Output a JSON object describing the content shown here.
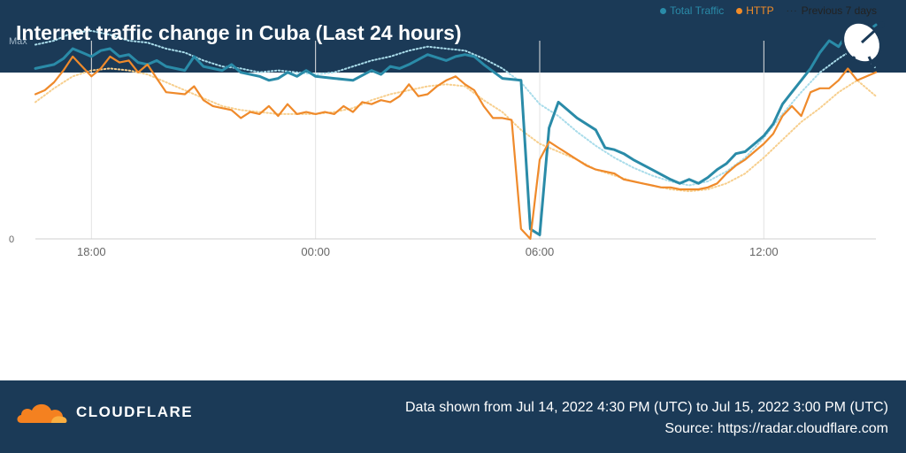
{
  "header": {
    "title": "Internet traffic change in Cuba (Last 24 hours)"
  },
  "legend": [
    {
      "label": "Total Traffic",
      "color": "#2a8ba8",
      "marker": "dot"
    },
    {
      "label": "HTTP",
      "color": "#f28c28",
      "marker": "dot"
    },
    {
      "label": "Previous 7 days",
      "color": "#222222",
      "marker": "dots"
    }
  ],
  "colors": {
    "total": "#2a8ba8",
    "total_prev": "#a9dcea",
    "http": "#ef8a2b",
    "http_prev": "#f7cf8e",
    "band": "#1b3a57"
  },
  "footer": {
    "brand": "CLOUDFLARE",
    "logo_icon": "cloudflare-cloud-icon",
    "range_text": "Data shown from Jul 14, 2022 4:30 PM (UTC) to Jul 15, 2022 3:00 PM (UTC)",
    "source_text": "Source: https://radar.cloudflare.com"
  },
  "chart_data": {
    "type": "line",
    "title": "Internet traffic change in Cuba (Last 24 hours)",
    "x_unit": "hours since Jul 14, 2022 4:30 PM UTC",
    "xlim": [
      0,
      22.5
    ],
    "ylim": [
      0,
      100
    ],
    "y_ticks": [
      {
        "value": 0,
        "label": "0"
      },
      {
        "value": 100,
        "label": "Max"
      }
    ],
    "x_ticks": [
      {
        "value": 1.5,
        "label": "18:00"
      },
      {
        "value": 7.5,
        "label": "00:00"
      },
      {
        "value": 13.5,
        "label": "06:00"
      },
      {
        "value": 19.5,
        "label": "12:00"
      }
    ],
    "grid": "vertical",
    "legend_position": "top-right",
    "series": [
      {
        "name": "Total Traffic",
        "key": "total",
        "style": "solid",
        "points": [
          [
            0,
            86
          ],
          [
            0.5,
            88
          ],
          [
            0.75,
            91
          ],
          [
            1,
            96
          ],
          [
            1.25,
            94
          ],
          [
            1.5,
            92
          ],
          [
            1.75,
            95
          ],
          [
            2,
            96
          ],
          [
            2.25,
            92
          ],
          [
            2.5,
            93
          ],
          [
            2.75,
            89
          ],
          [
            3,
            88
          ],
          [
            3.25,
            90
          ],
          [
            3.5,
            87
          ],
          [
            4,
            85
          ],
          [
            4.25,
            92
          ],
          [
            4.5,
            87
          ],
          [
            4.75,
            86
          ],
          [
            5,
            85
          ],
          [
            5.25,
            88
          ],
          [
            5.5,
            84
          ],
          [
            6,
            82
          ],
          [
            6.25,
            80
          ],
          [
            6.5,
            81
          ],
          [
            6.75,
            84
          ],
          [
            7,
            82
          ],
          [
            7.25,
            85
          ],
          [
            7.5,
            82
          ],
          [
            8,
            81
          ],
          [
            8.5,
            80
          ],
          [
            9,
            85
          ],
          [
            9.25,
            83
          ],
          [
            9.5,
            87
          ],
          [
            9.75,
            86
          ],
          [
            10,
            88
          ],
          [
            10.5,
            93
          ],
          [
            11,
            90
          ],
          [
            11.25,
            92
          ],
          [
            11.5,
            93
          ],
          [
            11.75,
            92
          ],
          [
            12,
            88
          ],
          [
            12.5,
            81
          ],
          [
            13,
            80
          ],
          [
            13.25,
            5
          ],
          [
            13.5,
            2
          ],
          [
            13.75,
            56
          ],
          [
            14,
            69
          ],
          [
            14.25,
            65
          ],
          [
            14.5,
            61
          ],
          [
            15,
            55
          ],
          [
            15.25,
            46
          ],
          [
            15.5,
            45
          ],
          [
            15.75,
            43
          ],
          [
            16,
            40
          ],
          [
            16.5,
            35
          ],
          [
            17,
            30
          ],
          [
            17.25,
            28
          ],
          [
            17.5,
            30
          ],
          [
            17.75,
            28
          ],
          [
            18,
            31
          ],
          [
            18.25,
            35
          ],
          [
            18.5,
            38
          ],
          [
            18.75,
            43
          ],
          [
            19,
            44
          ],
          [
            19.25,
            48
          ],
          [
            19.5,
            52
          ],
          [
            19.75,
            58
          ],
          [
            20,
            68
          ],
          [
            20.25,
            74
          ],
          [
            20.5,
            80
          ],
          [
            20.75,
            86
          ],
          [
            21,
            94
          ],
          [
            21.25,
            100
          ],
          [
            21.5,
            97
          ],
          [
            21.75,
            104
          ],
          [
            22,
            101
          ],
          [
            22.5,
            108
          ]
        ]
      },
      {
        "name": "Total Traffic (Previous 7 days)",
        "key": "total_prev",
        "style": "dotted",
        "points": [
          [
            0,
            98
          ],
          [
            0.5,
            100
          ],
          [
            1,
            104
          ],
          [
            1.5,
            105
          ],
          [
            2,
            103
          ],
          [
            2.5,
            100
          ],
          [
            3,
            99
          ],
          [
            3.5,
            96
          ],
          [
            4,
            94
          ],
          [
            4.5,
            90
          ],
          [
            5,
            87
          ],
          [
            5.5,
            86
          ],
          [
            6,
            84
          ],
          [
            6.5,
            85
          ],
          [
            7,
            84
          ],
          [
            7.5,
            83
          ],
          [
            8,
            84
          ],
          [
            8.5,
            87
          ],
          [
            9,
            90
          ],
          [
            9.5,
            92
          ],
          [
            10,
            95
          ],
          [
            10.5,
            97
          ],
          [
            11,
            96
          ],
          [
            11.5,
            95
          ],
          [
            12,
            91
          ],
          [
            12.5,
            86
          ],
          [
            13,
            79
          ],
          [
            13.5,
            68
          ],
          [
            14,
            62
          ],
          [
            14.5,
            54
          ],
          [
            15,
            47
          ],
          [
            15.5,
            41
          ],
          [
            16,
            36
          ],
          [
            16.5,
            32
          ],
          [
            17,
            29
          ],
          [
            17.5,
            27
          ],
          [
            18,
            29
          ],
          [
            18.5,
            34
          ],
          [
            19,
            41
          ],
          [
            19.5,
            51
          ],
          [
            20,
            63
          ],
          [
            20.5,
            74
          ],
          [
            21,
            84
          ],
          [
            21.5,
            91
          ],
          [
            22,
            97
          ],
          [
            22.5,
            86
          ]
        ]
      },
      {
        "name": "HTTP",
        "key": "http",
        "style": "solid",
        "points": [
          [
            0,
            73
          ],
          [
            0.25,
            75
          ],
          [
            0.5,
            79
          ],
          [
            0.75,
            85
          ],
          [
            1,
            92
          ],
          [
            1.25,
            87
          ],
          [
            1.5,
            82
          ],
          [
            1.75,
            86
          ],
          [
            2,
            92
          ],
          [
            2.25,
            89
          ],
          [
            2.5,
            90
          ],
          [
            2.75,
            84
          ],
          [
            3,
            88
          ],
          [
            3.25,
            81
          ],
          [
            3.5,
            74
          ],
          [
            4,
            73
          ],
          [
            4.25,
            77
          ],
          [
            4.5,
            70
          ],
          [
            4.75,
            67
          ],
          [
            5,
            66
          ],
          [
            5.25,
            65
          ],
          [
            5.5,
            61
          ],
          [
            5.75,
            64
          ],
          [
            6,
            63
          ],
          [
            6.25,
            67
          ],
          [
            6.5,
            62
          ],
          [
            6.75,
            68
          ],
          [
            7,
            63
          ],
          [
            7.25,
            64
          ],
          [
            7.5,
            63
          ],
          [
            7.75,
            64
          ],
          [
            8,
            63
          ],
          [
            8.25,
            67
          ],
          [
            8.5,
            64
          ],
          [
            8.75,
            69
          ],
          [
            9,
            68
          ],
          [
            9.25,
            70
          ],
          [
            9.5,
            69
          ],
          [
            9.75,
            72
          ],
          [
            10,
            78
          ],
          [
            10.25,
            72
          ],
          [
            10.5,
            73
          ],
          [
            10.75,
            77
          ],
          [
            11,
            80
          ],
          [
            11.25,
            82
          ],
          [
            11.5,
            78
          ],
          [
            11.75,
            75
          ],
          [
            12,
            67
          ],
          [
            12.25,
            61
          ],
          [
            12.5,
            61
          ],
          [
            12.75,
            60
          ],
          [
            13,
            5
          ],
          [
            13.25,
            0
          ],
          [
            13.5,
            40
          ],
          [
            13.75,
            49
          ],
          [
            14,
            46
          ],
          [
            14.25,
            43
          ],
          [
            14.5,
            40
          ],
          [
            14.75,
            37
          ],
          [
            15,
            35
          ],
          [
            15.25,
            34
          ],
          [
            15.5,
            33
          ],
          [
            15.75,
            30
          ],
          [
            16,
            29
          ],
          [
            16.25,
            28
          ],
          [
            16.5,
            27
          ],
          [
            16.75,
            26
          ],
          [
            17,
            26
          ],
          [
            17.25,
            25
          ],
          [
            17.5,
            25
          ],
          [
            17.75,
            25
          ],
          [
            18,
            26
          ],
          [
            18.25,
            28
          ],
          [
            18.5,
            33
          ],
          [
            18.75,
            37
          ],
          [
            19,
            40
          ],
          [
            19.25,
            44
          ],
          [
            19.5,
            48
          ],
          [
            19.75,
            53
          ],
          [
            20,
            62
          ],
          [
            20.25,
            67
          ],
          [
            20.5,
            62
          ],
          [
            20.75,
            74
          ],
          [
            21,
            76
          ],
          [
            21.25,
            76
          ],
          [
            21.5,
            80
          ],
          [
            21.75,
            86
          ],
          [
            22,
            80
          ],
          [
            22.5,
            84
          ]
        ]
      },
      {
        "name": "HTTP (Previous 7 days)",
        "key": "http_prev",
        "style": "dotted",
        "points": [
          [
            0,
            69
          ],
          [
            0.5,
            76
          ],
          [
            1,
            82
          ],
          [
            1.5,
            85
          ],
          [
            2,
            86
          ],
          [
            2.5,
            85
          ],
          [
            3,
            83
          ],
          [
            3.5,
            79
          ],
          [
            4,
            75
          ],
          [
            4.5,
            71
          ],
          [
            5,
            67
          ],
          [
            5.5,
            65
          ],
          [
            6,
            64
          ],
          [
            6.5,
            63
          ],
          [
            7,
            63
          ],
          [
            7.5,
            63
          ],
          [
            8,
            64
          ],
          [
            8.5,
            66
          ],
          [
            9,
            70
          ],
          [
            9.5,
            73
          ],
          [
            10,
            75
          ],
          [
            10.5,
            77
          ],
          [
            11,
            78
          ],
          [
            11.5,
            77
          ],
          [
            12,
            70
          ],
          [
            12.5,
            64
          ],
          [
            13,
            55
          ],
          [
            13.5,
            48
          ],
          [
            14,
            44
          ],
          [
            14.5,
            40
          ],
          [
            15,
            35
          ],
          [
            15.5,
            32
          ],
          [
            16,
            29
          ],
          [
            16.5,
            27
          ],
          [
            17,
            25
          ],
          [
            17.5,
            24
          ],
          [
            18,
            25
          ],
          [
            18.5,
            28
          ],
          [
            19,
            33
          ],
          [
            19.5,
            41
          ],
          [
            20,
            50
          ],
          [
            20.5,
            59
          ],
          [
            21,
            66
          ],
          [
            21.5,
            74
          ],
          [
            22,
            80
          ],
          [
            22.5,
            72
          ]
        ]
      }
    ]
  }
}
